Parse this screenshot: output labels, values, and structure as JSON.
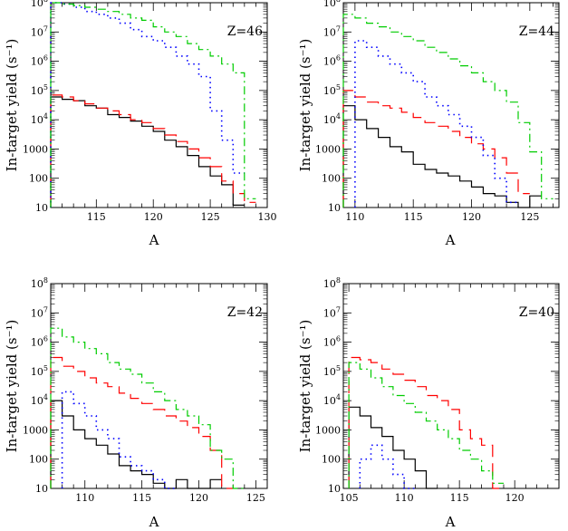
{
  "chart_data": [
    {
      "type": "line",
      "label": "Z=46",
      "xlabel": "A",
      "ylabel": "In-target yield (s⁻¹)",
      "xlim": [
        111,
        130
      ],
      "ylim": [
        10,
        100000000
      ],
      "yscale": "log",
      "x_ticks": [
        115,
        120,
        125,
        130
      ],
      "y_ticks": [
        10,
        100,
        1000,
        10000,
        100000,
        1000000,
        10000000,
        100000000
      ],
      "grid": false,
      "series": [
        {
          "style": "solid",
          "color": "#000000",
          "x": [
            111.5,
            112.5,
            113.5,
            114.5,
            115.5,
            116.5,
            117.5,
            118.5,
            119.5,
            120.5,
            121.5,
            122.5,
            123.5,
            124.5,
            125.5,
            126.5,
            127.5
          ],
          "y": [
            60000,
            50000,
            45000,
            30000,
            25000,
            15000,
            12000,
            9000,
            6000,
            4000,
            2000,
            1200,
            600,
            250,
            120,
            60,
            12
          ]
        },
        {
          "style": "dashed",
          "color": "#ff0000",
          "x": [
            111.5,
            112.5,
            113.5,
            114.5,
            115.5,
            116.5,
            117.5,
            118.5,
            119.5,
            120.5,
            121.5,
            122.5,
            123.5,
            124.5,
            125.5,
            126.5,
            127.5,
            128.5
          ],
          "y": [
            70000,
            60000,
            45000,
            35000,
            25000,
            20000,
            15000,
            10000,
            8000,
            5000,
            3000,
            1800,
            1000,
            500,
            250,
            80,
            30,
            15
          ]
        },
        {
          "style": "dotted",
          "color": "#0000ff",
          "x": [
            111.5,
            112.5,
            113.5,
            114.5,
            115.5,
            116.5,
            117.5,
            118.5,
            119.5,
            120.5,
            121.5,
            122.5,
            123.5,
            124.5,
            125.5,
            126.5,
            127.5
          ],
          "y": [
            100000000,
            90000000,
            70000000,
            50000000,
            40000000,
            30000000,
            20000000,
            12000000,
            7000000,
            5000000,
            3000000,
            1500000,
            800000,
            300000,
            20000,
            2000,
            150
          ]
        },
        {
          "style": "dashdot",
          "color": "#00cc00",
          "x": [
            111.5,
            112.5,
            113.5,
            114.5,
            115.5,
            116.5,
            117.5,
            118.5,
            119.5,
            120.5,
            121.5,
            122.5,
            123.5,
            124.5,
            125.5,
            126.5,
            127.5,
            128.5
          ],
          "y": [
            100000000,
            90000000,
            80000000,
            70000000,
            60000000,
            50000000,
            40000000,
            30000000,
            25000000,
            15000000,
            10000000,
            7000000,
            4000000,
            2500000,
            1500000,
            800000,
            400000,
            20
          ]
        }
      ]
    },
    {
      "type": "line",
      "label": "Z=44",
      "xlabel": "A",
      "ylabel": "In-target yield (s⁻¹)",
      "xlim": [
        109,
        127.5
      ],
      "ylim": [
        10,
        100000000
      ],
      "yscale": "log",
      "x_ticks": [
        110,
        115,
        120,
        125
      ],
      "y_ticks": [
        10,
        100,
        1000,
        10000,
        100000,
        1000000,
        10000000,
        100000000
      ],
      "grid": false,
      "series": [
        {
          "style": "solid",
          "color": "#000000",
          "x": [
            109.5,
            110.5,
            111.5,
            112.5,
            113.5,
            114.5,
            115.5,
            116.5,
            117.5,
            118.5,
            119.5,
            120.5,
            121.5,
            122.5,
            123.5,
            124.5,
            125.5
          ],
          "y": [
            30000,
            10000,
            5000,
            2500,
            1200,
            800,
            300,
            200,
            150,
            120,
            80,
            50,
            30,
            25,
            15,
            10,
            25
          ]
        },
        {
          "style": "dashed",
          "color": "#ff0000",
          "x": [
            109.5,
            110.5,
            111.5,
            112.5,
            113.5,
            114.5,
            115.5,
            116.5,
            117.5,
            118.5,
            119.5,
            120.5,
            121.5,
            122.5,
            123.5,
            124.5
          ],
          "y": [
            100000,
            60000,
            40000,
            30000,
            25000,
            18000,
            12000,
            8000,
            6000,
            4000,
            2500,
            1500,
            1000,
            500,
            150,
            30
          ]
        },
        {
          "style": "dotted",
          "color": "#0000ff",
          "x": [
            110.5,
            111.5,
            112.5,
            113.5,
            114.5,
            115.5,
            116.5,
            117.5,
            118.5,
            119.5,
            120.5,
            121.5,
            122.5,
            123.5
          ],
          "y": [
            5000000,
            3000000,
            1500000,
            800000,
            400000,
            200000,
            60000,
            30000,
            15000,
            6000,
            2500,
            600,
            100,
            15
          ]
        },
        {
          "style": "dashdot",
          "color": "#00cc00",
          "x": [
            109.5,
            110.5,
            111.5,
            112.5,
            113.5,
            114.5,
            115.5,
            116.5,
            117.5,
            118.5,
            119.5,
            120.5,
            121.5,
            122.5,
            123.5,
            124.5,
            125.5,
            126.5
          ],
          "y": [
            40000000,
            30000000,
            20000000,
            15000000,
            10000000,
            7000000,
            5000000,
            3000000,
            2000000,
            1200000,
            700000,
            400000,
            200000,
            100000,
            40000,
            8000,
            800,
            20
          ]
        }
      ]
    },
    {
      "type": "line",
      "label": "Z=42",
      "xlabel": "A",
      "ylabel": "In-target yield (s⁻¹)",
      "xlim": [
        107,
        126
      ],
      "ylim": [
        10,
        100000000
      ],
      "yscale": "log",
      "x_ticks": [
        110,
        115,
        120,
        125
      ],
      "y_ticks": [
        10,
        100,
        1000,
        10000,
        100000,
        1000000,
        10000000,
        100000000
      ],
      "grid": false,
      "series": [
        {
          "style": "solid",
          "color": "#000000",
          "x": [
            107.5,
            108.5,
            109.5,
            110.5,
            111.5,
            112.5,
            113.5,
            114.5,
            115.5,
            116.5,
            117.5,
            118.5,
            119.5,
            120.5,
            121.5
          ],
          "y": [
            10000,
            3000,
            1000,
            500,
            300,
            150,
            60,
            40,
            30,
            15,
            10,
            20,
            10,
            10,
            20
          ]
        },
        {
          "style": "dashed",
          "color": "#ff0000",
          "x": [
            107.5,
            108.5,
            109.5,
            110.5,
            111.5,
            112.5,
            113.5,
            114.5,
            115.5,
            116.5,
            117.5,
            118.5,
            119.5,
            120.5,
            121.5,
            122.5
          ],
          "y": [
            300000,
            150000,
            100000,
            60000,
            40000,
            30000,
            18000,
            12000,
            8000,
            5000,
            3000,
            2000,
            1200,
            600,
            200,
            10
          ]
        },
        {
          "style": "dotted",
          "color": "#0000ff",
          "x": [
            108.5,
            109.5,
            110.5,
            111.5,
            112.5,
            113.5,
            114.5,
            115.5,
            116.5,
            117.5
          ],
          "y": [
            20000,
            8000,
            3000,
            1000,
            500,
            120,
            60,
            40,
            20,
            10
          ]
        },
        {
          "style": "dashdot",
          "color": "#00cc00",
          "x": [
            107.5,
            108.5,
            109.5,
            110.5,
            111.5,
            112.5,
            113.5,
            114.5,
            115.5,
            116.5,
            117.5,
            118.5,
            119.5,
            120.5,
            121.5,
            122.5,
            123.5
          ],
          "y": [
            3000000,
            1500000,
            1000000,
            600000,
            400000,
            200000,
            120000,
            80000,
            40000,
            20000,
            10000,
            5000,
            3000,
            1500,
            200,
            100,
            10
          ]
        }
      ]
    },
    {
      "type": "line",
      "label": "Z=40",
      "xlabel": "A",
      "ylabel": "In-target yield (s⁻¹)",
      "xlim": [
        104.5,
        124
      ],
      "ylim": [
        10,
        100000000
      ],
      "yscale": "log",
      "x_ticks": [
        105,
        110,
        115,
        120
      ],
      "y_ticks": [
        10,
        100,
        1000,
        10000,
        100000,
        1000000,
        10000000,
        100000000
      ],
      "grid": false,
      "series": [
        {
          "style": "solid",
          "color": "#000000",
          "x": [
            105.5,
            106.5,
            107.5,
            108.5,
            109.5,
            110.5,
            111.5,
            112.5
          ],
          "y": [
            6000,
            3000,
            1200,
            600,
            200,
            100,
            40,
            10
          ]
        },
        {
          "style": "dashed",
          "color": "#ff0000",
          "x": [
            105.5,
            106.5,
            107.5,
            108.5,
            109.5,
            110.5,
            111.5,
            112.5,
            113.5,
            114.5,
            115.5,
            116.5,
            117.5,
            118.5
          ],
          "y": [
            300000,
            250000,
            200000,
            120000,
            80000,
            50000,
            30000,
            15000,
            10000,
            5000,
            1000,
            500,
            300,
            10
          ]
        },
        {
          "style": "dotted",
          "color": "#0000ff",
          "x": [
            106.5,
            107.5,
            108.5,
            109.5,
            110.5
          ],
          "y": [
            100,
            300,
            100,
            30,
            10
          ]
        },
        {
          "style": "dashdot",
          "color": "#00cc00",
          "x": [
            105.5,
            106.5,
            107.5,
            108.5,
            109.5,
            110.5,
            111.5,
            112.5,
            113.5,
            114.5,
            115.5,
            116.5,
            117.5,
            118.5
          ],
          "y": [
            200000,
            120000,
            60000,
            30000,
            15000,
            8000,
            4000,
            2000,
            1000,
            500,
            200,
            100,
            40,
            15
          ]
        }
      ]
    }
  ]
}
